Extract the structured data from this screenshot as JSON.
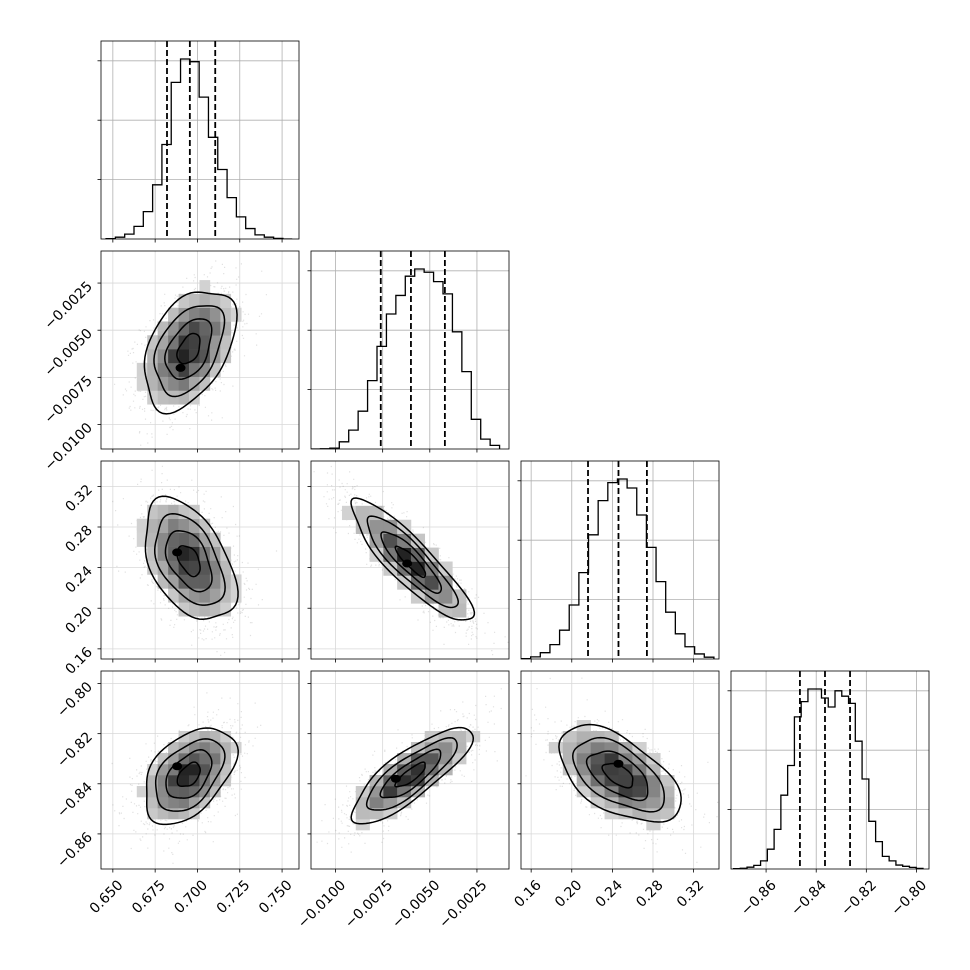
{
  "chart_data": {
    "type": "corner",
    "grid": true,
    "title": "",
    "parameters": [
      {
        "name": "",
        "range": [
          0.643,
          0.76
        ],
        "ticks": [
          0.65,
          0.675,
          0.7,
          0.725,
          0.75
        ],
        "tick_labels": [
          "0.650",
          "0.675",
          "0.700",
          "0.725",
          "0.750"
        ],
        "quantiles": [
          0.682,
          0.6955,
          0.7105
        ],
        "histogram": {
          "bin_edges": [
            0.646,
            0.6515,
            0.657,
            0.6625,
            0.668,
            0.6735,
            0.679,
            0.6845,
            0.69,
            0.6955,
            0.701,
            0.7065,
            0.712,
            0.7175,
            0.723,
            0.7285,
            0.734,
            0.7395,
            0.745,
            0.7505,
            0.756
          ],
          "counts": [
            2,
            10,
            27,
            70,
            152,
            301,
            525,
            870,
            1000,
            985,
            788,
            565,
            386,
            230,
            123,
            58,
            23,
            10,
            3,
            0
          ]
        }
      },
      {
        "name": "",
        "range": [
          -0.0113,
          -0.0008
        ],
        "ticks": [
          -0.01,
          -0.0075,
          -0.005,
          -0.0025
        ],
        "tick_labels": [
          "−0.0100",
          "−0.0075",
          "−0.0050",
          "−0.0025"
        ],
        "quantiles": [
          -0.0076,
          -0.006,
          -0.0042
        ],
        "histogram": {
          "bin_edges": [
            -0.0113,
            -0.0108,
            -0.0103,
            -0.0098,
            -0.0093,
            -0.0088,
            -0.0083,
            -0.0078,
            -0.0073,
            -0.0068,
            -0.0063,
            -0.0058,
            -0.0053,
            -0.0048,
            -0.0043,
            -0.0038,
            -0.0033,
            -0.0028,
            -0.0023,
            -0.0018,
            -0.0013
          ],
          "counts": [
            0,
            1,
            5,
            40,
            105,
            210,
            380,
            570,
            750,
            853,
            960,
            1000,
            982,
            930,
            862,
            651,
            430,
            165,
            55,
            20
          ]
        }
      },
      {
        "name": "",
        "range": [
          0.15,
          0.345
        ],
        "ticks": [
          0.16,
          0.2,
          0.24,
          0.28,
          0.32
        ],
        "tick_labels": [
          "0.16",
          "0.20",
          "0.24",
          "0.28",
          "0.32"
        ],
        "quantiles": [
          0.216,
          0.246,
          0.274
        ],
        "histogram": {
          "bin_edges": [
            0.15,
            0.1595,
            0.169,
            0.1785,
            0.188,
            0.1975,
            0.207,
            0.2165,
            0.226,
            0.2355,
            0.245,
            0.2545,
            0.264,
            0.2735,
            0.283,
            0.2925,
            0.302,
            0.3115,
            0.321,
            0.3305,
            0.34
          ],
          "counts": [
            2,
            12,
            35,
            80,
            160,
            300,
            480,
            690,
            880,
            980,
            1000,
            950,
            800,
            620,
            430,
            260,
            140,
            68,
            28,
            10
          ]
        }
      },
      {
        "name": "",
        "range": [
          -0.874,
          -0.795
        ],
        "ticks": [
          -0.86,
          -0.84,
          -0.82,
          -0.8
        ],
        "tick_labels": [
          "−0.86",
          "−0.84",
          "−0.82",
          "−0.80"
        ],
        "quantiles": [
          -0.8465,
          -0.8365,
          -0.8265
        ],
        "histogram": {
          "bin_edges": [
            -0.873,
            -0.8703,
            -0.8676,
            -0.8649,
            -0.8622,
            -0.8595,
            -0.8568,
            -0.8541,
            -0.8514,
            -0.8487,
            -0.846,
            -0.8433,
            -0.8406,
            -0.8379,
            -0.8352,
            -0.8325,
            -0.8298,
            -0.8271,
            -0.8244,
            -0.8217,
            -0.819,
            -0.8163,
            -0.8136,
            -0.8109,
            -0.8082,
            -0.8055,
            -0.8028,
            -0.8001,
            -0.7974
          ],
          "counts": [
            2,
            4,
            10,
            20,
            45,
            110,
            220,
            410,
            575,
            845,
            930,
            1000,
            1000,
            950,
            900,
            990,
            960,
            920,
            710,
            500,
            265,
            152,
            70,
            45,
            22,
            15,
            9,
            3
          ]
        }
      }
    ],
    "pairs": [
      {
        "row": 1,
        "col": 0,
        "mean": [
          0.695,
          -0.006
        ],
        "sd": [
          0.0135,
          0.0016
        ],
        "correlation": 0.42,
        "contour_levels": [
          0.5,
          1.0,
          1.5,
          2.0
        ],
        "peak": [
          0.69,
          -0.007
        ]
      },
      {
        "row": 2,
        "col": 0,
        "mean": [
          0.695,
          0.247
        ],
        "sd": [
          0.0135,
          0.03
        ],
        "correlation": -0.45,
        "contour_levels": [
          0.5,
          1.0,
          1.5,
          2.0
        ],
        "peak": [
          0.688,
          0.255
        ]
      },
      {
        "row": 2,
        "col": 1,
        "mean": [
          -0.006,
          0.246
        ],
        "sd": [
          0.0016,
          0.03
        ],
        "correlation": -0.88,
        "contour_levels": [
          0.5,
          1.0,
          1.5,
          2.0
        ],
        "peak": [
          -0.0062,
          0.244
        ]
      },
      {
        "row": 3,
        "col": 0,
        "mean": [
          0.695,
          -0.8365
        ],
        "sd": [
          0.0135,
          0.0096
        ],
        "correlation": 0.45,
        "contour_levels": [
          0.5,
          1.0,
          1.5,
          2.0
        ],
        "peak": [
          0.688,
          -0.833
        ]
      },
      {
        "row": 3,
        "col": 1,
        "mean": [
          -0.006,
          -0.8365
        ],
        "sd": [
          0.0016,
          0.0096
        ],
        "correlation": 0.82,
        "contour_levels": [
          0.5,
          1.0,
          1.5,
          2.0
        ],
        "peak": [
          -0.0068,
          -0.838
        ]
      },
      {
        "row": 3,
        "col": 2,
        "mean": [
          0.246,
          -0.8365
        ],
        "sd": [
          0.03,
          0.0096
        ],
        "correlation": -0.55,
        "contour_levels": [
          0.5,
          1.0,
          1.5,
          2.0
        ],
        "peak": [
          0.246,
          -0.832
        ]
      }
    ]
  }
}
